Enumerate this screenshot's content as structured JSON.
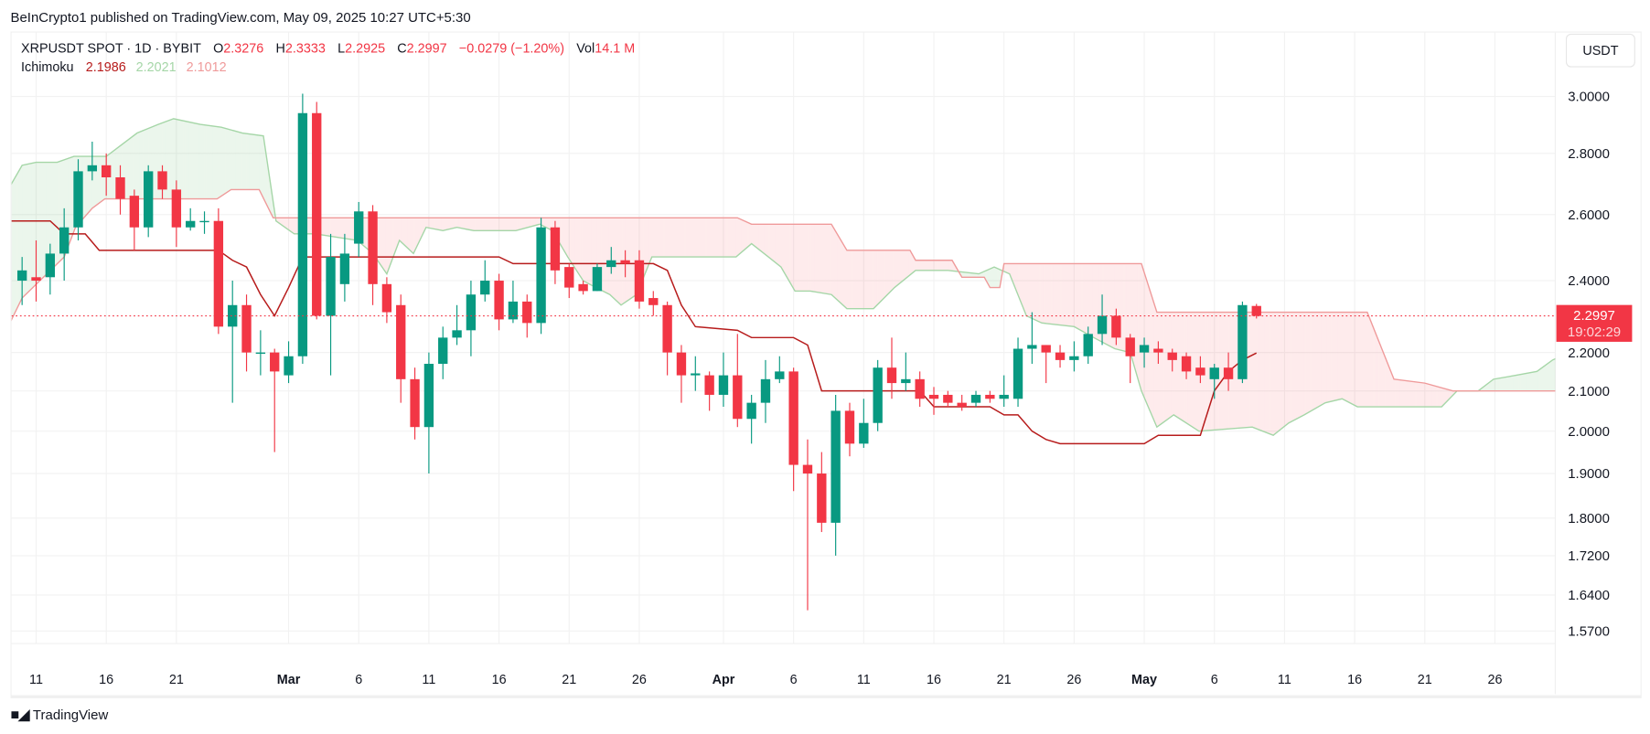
{
  "publisher_line": "BeInCrypto1 published on TradingView.com, May 09, 2025 10:27 UTC+5:30",
  "legend": {
    "symbol": "XRPUSDT SPOT · 1D · BYBIT",
    "o_label": "O",
    "o": "2.3276",
    "h_label": "H",
    "h": "2.3333",
    "l_label": "L",
    "l": "2.2925",
    "c_label": "C",
    "c": "2.2997",
    "change": "−0.0279 (−1.20%)",
    "vol_label": "Vol",
    "vol": "14.1 M",
    "indicator": "Ichimoku",
    "ind_values": [
      "2.1986",
      "2.2021",
      "2.1012"
    ]
  },
  "currency_button": "USDT",
  "last_price": {
    "price": "2.2997",
    "countdown": "19:02:29",
    "value": 2.2997
  },
  "footer": {
    "logo_text": "TV",
    "brand": "TradingView"
  },
  "colors": {
    "up": "#089981",
    "down": "#f23645",
    "conversion": "#b71c1c",
    "span_a": "#a5d6a7",
    "span_b": "#ef9a9a"
  },
  "chart_data": {
    "type": "candlestick",
    "title": "XRPUSDT SPOT · 1D · BYBIT",
    "scale": "log",
    "start_date": "2025-02-10",
    "ylim": [
      1.55,
      3.05
    ],
    "y_ticks": [
      "3.0000",
      "2.8000",
      "2.6000",
      "2.4000",
      "2.2000",
      "2.1000",
      "2.0000",
      "1.9000",
      "1.8000",
      "1.7200",
      "1.6400",
      "1.5700"
    ],
    "x_ticks": [
      {
        "label": "11",
        "day": 1
      },
      {
        "label": "16",
        "day": 6
      },
      {
        "label": "21",
        "day": 11
      },
      {
        "label": "Mar",
        "day": 19,
        "bold": true
      },
      {
        "label": "6",
        "day": 24
      },
      {
        "label": "11",
        "day": 29
      },
      {
        "label": "16",
        "day": 34
      },
      {
        "label": "21",
        "day": 39
      },
      {
        "label": "26",
        "day": 44
      },
      {
        "label": "Apr",
        "day": 50,
        "bold": true
      },
      {
        "label": "6",
        "day": 55
      },
      {
        "label": "11",
        "day": 60
      },
      {
        "label": "16",
        "day": 65
      },
      {
        "label": "21",
        "day": 70
      },
      {
        "label": "26",
        "day": 75
      },
      {
        "label": "May",
        "day": 80,
        "bold": true
      },
      {
        "label": "6",
        "day": 85
      },
      {
        "label": "11",
        "day": 90
      },
      {
        "label": "16",
        "day": 95
      },
      {
        "label": "21",
        "day": 100
      },
      {
        "label": "26",
        "day": 105
      }
    ],
    "candles_ohlc": [
      [
        2.4,
        2.47,
        2.33,
        2.43
      ],
      [
        2.41,
        2.52,
        2.34,
        2.4
      ],
      [
        2.41,
        2.51,
        2.36,
        2.48
      ],
      [
        2.48,
        2.62,
        2.4,
        2.56
      ],
      [
        2.56,
        2.78,
        2.52,
        2.74
      ],
      [
        2.74,
        2.84,
        2.71,
        2.76
      ],
      [
        2.76,
        2.8,
        2.66,
        2.72
      ],
      [
        2.72,
        2.76,
        2.6,
        2.65
      ],
      [
        2.66,
        2.68,
        2.49,
        2.56
      ],
      [
        2.56,
        2.76,
        2.53,
        2.74
      ],
      [
        2.74,
        2.76,
        2.65,
        2.68
      ],
      [
        2.68,
        2.71,
        2.5,
        2.56
      ],
      [
        2.56,
        2.62,
        2.55,
        2.58
      ],
      [
        2.58,
        2.61,
        2.54,
        2.58
      ],
      [
        2.58,
        2.62,
        2.25,
        2.27
      ],
      [
        2.27,
        2.4,
        2.07,
        2.33
      ],
      [
        2.33,
        2.36,
        2.15,
        2.2
      ],
      [
        2.2,
        2.26,
        2.14,
        2.2
      ],
      [
        2.2,
        2.21,
        1.95,
        2.15
      ],
      [
        2.14,
        2.23,
        2.12,
        2.19
      ],
      [
        2.19,
        3.01,
        2.17,
        2.94
      ],
      [
        2.94,
        2.98,
        2.29,
        2.3
      ],
      [
        2.3,
        2.54,
        2.14,
        2.47
      ],
      [
        2.39,
        2.54,
        2.34,
        2.48
      ],
      [
        2.51,
        2.64,
        2.47,
        2.61
      ],
      [
        2.61,
        2.63,
        2.33,
        2.39
      ],
      [
        2.39,
        2.41,
        2.28,
        2.31
      ],
      [
        2.33,
        2.36,
        2.07,
        2.13
      ],
      [
        2.13,
        2.16,
        1.98,
        2.01
      ],
      [
        2.01,
        2.2,
        1.9,
        2.17
      ],
      [
        2.17,
        2.27,
        2.13,
        2.24
      ],
      [
        2.24,
        2.33,
        2.22,
        2.26
      ],
      [
        2.26,
        2.4,
        2.19,
        2.36
      ],
      [
        2.36,
        2.46,
        2.34,
        2.4
      ],
      [
        2.4,
        2.42,
        2.26,
        2.29
      ],
      [
        2.29,
        2.4,
        2.28,
        2.34
      ],
      [
        2.34,
        2.36,
        2.24,
        2.28
      ],
      [
        2.28,
        2.59,
        2.25,
        2.56
      ],
      [
        2.56,
        2.58,
        2.39,
        2.43
      ],
      [
        2.44,
        2.45,
        2.35,
        2.38
      ],
      [
        2.39,
        2.4,
        2.36,
        2.37
      ],
      [
        2.37,
        2.45,
        2.37,
        2.44
      ],
      [
        2.44,
        2.5,
        2.42,
        2.46
      ],
      [
        2.46,
        2.49,
        2.41,
        2.45
      ],
      [
        2.46,
        2.49,
        2.32,
        2.34
      ],
      [
        2.35,
        2.37,
        2.3,
        2.33
      ],
      [
        2.33,
        2.34,
        2.14,
        2.2
      ],
      [
        2.2,
        2.22,
        2.07,
        2.14
      ],
      [
        2.14,
        2.19,
        2.1,
        2.145
      ],
      [
        2.14,
        2.15,
        2.05,
        2.09
      ],
      [
        2.09,
        2.2,
        2.06,
        2.14
      ],
      [
        2.14,
        2.25,
        2.01,
        2.03
      ],
      [
        2.03,
        2.09,
        1.97,
        2.07
      ],
      [
        2.07,
        2.18,
        2.02,
        2.13
      ],
      [
        2.13,
        2.19,
        2.12,
        2.15
      ],
      [
        2.15,
        2.16,
        1.86,
        1.92
      ],
      [
        1.92,
        1.98,
        1.61,
        1.9
      ],
      [
        1.9,
        1.95,
        1.77,
        1.79
      ],
      [
        1.79,
        2.09,
        1.72,
        2.05
      ],
      [
        2.05,
        2.07,
        1.94,
        1.97
      ],
      [
        1.97,
        2.08,
        1.96,
        2.02
      ],
      [
        2.02,
        2.18,
        2.0,
        2.16
      ],
      [
        2.16,
        2.24,
        2.08,
        2.12
      ],
      [
        2.12,
        2.2,
        2.1,
        2.13
      ],
      [
        2.13,
        2.15,
        2.06,
        2.08
      ],
      [
        2.09,
        2.11,
        2.04,
        2.08
      ],
      [
        2.09,
        2.1,
        2.06,
        2.07
      ],
      [
        2.07,
        2.09,
        2.05,
        2.06
      ],
      [
        2.07,
        2.1,
        2.06,
        2.09
      ],
      [
        2.09,
        2.1,
        2.07,
        2.08
      ],
      [
        2.08,
        2.14,
        2.06,
        2.09
      ],
      [
        2.08,
        2.24,
        2.06,
        2.21
      ],
      [
        2.21,
        2.31,
        2.17,
        2.22
      ],
      [
        2.22,
        2.22,
        2.12,
        2.2
      ],
      [
        2.2,
        2.22,
        2.16,
        2.18
      ],
      [
        2.18,
        2.23,
        2.15,
        2.19
      ],
      [
        2.19,
        2.27,
        2.17,
        2.25
      ],
      [
        2.25,
        2.36,
        2.22,
        2.3
      ],
      [
        2.3,
        2.32,
        2.22,
        2.24
      ],
      [
        2.24,
        2.25,
        2.12,
        2.19
      ],
      [
        2.2,
        2.24,
        2.16,
        2.22
      ],
      [
        2.21,
        2.23,
        2.17,
        2.2
      ],
      [
        2.2,
        2.21,
        2.15,
        2.18
      ],
      [
        2.19,
        2.2,
        2.13,
        2.15
      ],
      [
        2.16,
        2.19,
        2.12,
        2.14
      ],
      [
        2.13,
        2.17,
        2.08,
        2.16
      ],
      [
        2.16,
        2.2,
        2.1,
        2.13
      ],
      [
        2.13,
        2.34,
        2.12,
        2.33
      ],
      [
        2.3276,
        2.3333,
        2.2925,
        2.2997
      ]
    ],
    "ichimoku": {
      "conversion_line": [
        [
          -1,
          2.58
        ],
        [
          2,
          2.58
        ],
        [
          3,
          2.54
        ],
        [
          4.5,
          2.54
        ],
        [
          5.5,
          2.49
        ],
        [
          14,
          2.49
        ],
        [
          15,
          2.46
        ],
        [
          16,
          2.44
        ],
        [
          17,
          2.36
        ],
        [
          18,
          2.3
        ],
        [
          19,
          2.38
        ],
        [
          20,
          2.47
        ],
        [
          34,
          2.47
        ],
        [
          35,
          2.45
        ],
        [
          45,
          2.45
        ],
        [
          46,
          2.43
        ],
        [
          47,
          2.33
        ],
        [
          48,
          2.27
        ],
        [
          51,
          2.26
        ],
        [
          52,
          2.24
        ],
        [
          55,
          2.24
        ],
        [
          56,
          2.22
        ],
        [
          57,
          2.1
        ],
        [
          64,
          2.1
        ],
        [
          65,
          2.06
        ],
        [
          69,
          2.06
        ],
        [
          70,
          2.04
        ],
        [
          71,
          2.04
        ],
        [
          72,
          2.0
        ],
        [
          73,
          1.98
        ],
        [
          74,
          1.97
        ],
        [
          80,
          1.97
        ],
        [
          81,
          1.99
        ],
        [
          84,
          1.99
        ],
        [
          85,
          2.1
        ],
        [
          86,
          2.15
        ],
        [
          87,
          2.18
        ],
        [
          88,
          2.1986
        ]
      ],
      "span_a": [
        [
          -1,
          2.68
        ],
        [
          0,
          2.76
        ],
        [
          1,
          2.77
        ],
        [
          2.5,
          2.77
        ],
        [
          3.7,
          2.79
        ],
        [
          6,
          2.79
        ],
        [
          8.2,
          2.87
        ],
        [
          9.7,
          2.9
        ],
        [
          10.8,
          2.92
        ],
        [
          12.7,
          2.9
        ],
        [
          14.2,
          2.89
        ],
        [
          15.7,
          2.87
        ],
        [
          17.2,
          2.86
        ],
        [
          18.1,
          2.58
        ],
        [
          19.4,
          2.54
        ],
        [
          20.9,
          2.54
        ],
        [
          22.4,
          2.53
        ],
        [
          23.9,
          2.52
        ],
        [
          25,
          2.48
        ],
        [
          26,
          2.42
        ],
        [
          26.9,
          2.52
        ],
        [
          27.9,
          2.48
        ],
        [
          28.8,
          2.56
        ],
        [
          30,
          2.55
        ],
        [
          31,
          2.56
        ],
        [
          32.2,
          2.55
        ],
        [
          35.2,
          2.55
        ],
        [
          36.9,
          2.57
        ],
        [
          37.8,
          2.55
        ],
        [
          38.9,
          2.47
        ],
        [
          40,
          2.4
        ],
        [
          40.9,
          2.38
        ],
        [
          41.9,
          2.36
        ],
        [
          42.7,
          2.33
        ],
        [
          43.8,
          2.36
        ],
        [
          44.9,
          2.47
        ],
        [
          50.9,
          2.47
        ],
        [
          52,
          2.51
        ],
        [
          53.2,
          2.47
        ],
        [
          54.1,
          2.44
        ],
        [
          55.1,
          2.37
        ],
        [
          56.2,
          2.37
        ],
        [
          57.7,
          2.36
        ],
        [
          58.8,
          2.32
        ],
        [
          60.7,
          2.32
        ],
        [
          62.2,
          2.38
        ],
        [
          63.7,
          2.43
        ],
        [
          66,
          2.43
        ],
        [
          68.2,
          2.42
        ],
        [
          69.3,
          2.44
        ],
        [
          70.4,
          2.42
        ],
        [
          71.6,
          2.3
        ],
        [
          72.7,
          2.28
        ],
        [
          75,
          2.27
        ],
        [
          76.4,
          2.24
        ],
        [
          77.9,
          2.21
        ],
        [
          79,
          2.2
        ],
        [
          79.8,
          2.1
        ],
        [
          80.9,
          2.01
        ],
        [
          82.1,
          2.04
        ],
        [
          83.9,
          2.0
        ],
        [
          87.7,
          2.01
        ],
        [
          89.2,
          1.99
        ],
        [
          90.3,
          2.02
        ],
        [
          91.4,
          2.04
        ],
        [
          92.9,
          2.07
        ],
        [
          94.1,
          2.08
        ],
        [
          95.2,
          2.06
        ],
        [
          101.2,
          2.06
        ],
        [
          102.3,
          2.1
        ],
        [
          103.8,
          2.1
        ],
        [
          104.9,
          2.13
        ],
        [
          106.5,
          2.14
        ],
        [
          108,
          2.15
        ],
        [
          109.1,
          2.18
        ],
        [
          109.7,
          2.19
        ]
      ],
      "span_b": [
        [
          -1,
          2.27
        ],
        [
          0,
          2.35
        ],
        [
          3,
          2.47
        ],
        [
          3.8,
          2.56
        ],
        [
          5,
          2.62
        ],
        [
          5.9,
          2.65
        ],
        [
          13.9,
          2.65
        ],
        [
          14.9,
          2.68
        ],
        [
          16.9,
          2.68
        ],
        [
          17.9,
          2.59
        ],
        [
          51,
          2.59
        ],
        [
          52,
          2.57
        ],
        [
          57.7,
          2.57
        ],
        [
          58.8,
          2.49
        ],
        [
          63.3,
          2.49
        ],
        [
          63.7,
          2.46
        ],
        [
          66.3,
          2.46
        ],
        [
          67,
          2.41
        ],
        [
          68.6,
          2.41
        ],
        [
          69,
          2.38
        ],
        [
          69.7,
          2.38
        ],
        [
          70,
          2.45
        ],
        [
          79.8,
          2.45
        ],
        [
          80.9,
          2.31
        ],
        [
          95.9,
          2.31
        ],
        [
          97.8,
          2.13
        ],
        [
          100,
          2.12
        ],
        [
          102,
          2.1
        ],
        [
          109.7,
          2.1
        ]
      ]
    }
  }
}
